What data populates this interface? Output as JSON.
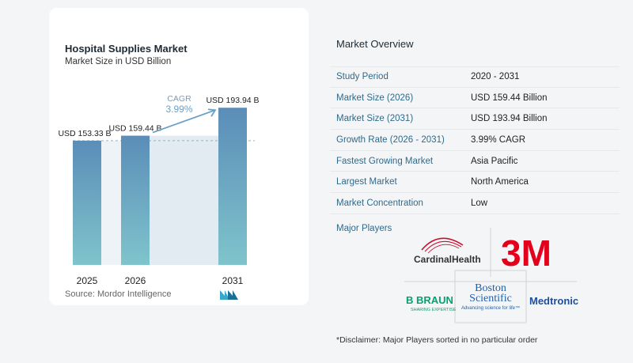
{
  "chart": {
    "title": "Hospital Supplies Market",
    "subtitle": "Market Size in USD Billion",
    "source": "Source:  Mordor Intelligence",
    "cagr_label": "CAGR",
    "cagr_value": "3.99%"
  },
  "chart_data": {
    "type": "bar",
    "categories": [
      "2025",
      "2026",
      "2031"
    ],
    "values": [
      153.33,
      159.44,
      193.94
    ],
    "data_labels": [
      "USD 153.33 B",
      "USD 159.44 B",
      "USD 193.94 B"
    ],
    "ylim": [
      0,
      200
    ],
    "colors": {
      "bar_top": "#5b8db8",
      "bar_bottom": "#7fc4cc",
      "shade": "#e3ebf2",
      "arrow": "#6aa0c7",
      "cagr": "#6aa0c7"
    }
  },
  "overview": {
    "title": "Market Overview",
    "rows": [
      {
        "label": "Study Period",
        "value": "2020 - 2031"
      },
      {
        "label": "Market Size (2026)",
        "value": "USD 159.44 Billion"
      },
      {
        "label": "Market Size (2031)",
        "value": "USD 193.94 Billion"
      },
      {
        "label": "Growth Rate (2026 - 2031)",
        "value": "3.99% CAGR"
      },
      {
        "label": "Fastest Growing Market",
        "value": "Asia Pacific"
      },
      {
        "label": "Largest Market",
        "value": "North America"
      },
      {
        "label": "Market Concentration",
        "value": "Low"
      }
    ],
    "major_players_label": "Major Players",
    "disclaimer": "*Disclaimer: Major Players sorted in no particular order"
  },
  "players": {
    "cardinal": "CardinalHealth",
    "three_m": "3M",
    "boston_1": "Boston",
    "boston_2": "Scientific",
    "boston_tag": "Advancing science for life™",
    "braun": "B BRAUN",
    "braun_tag": "SHARING EXPERTISE",
    "medtronic": "Medtronic"
  }
}
